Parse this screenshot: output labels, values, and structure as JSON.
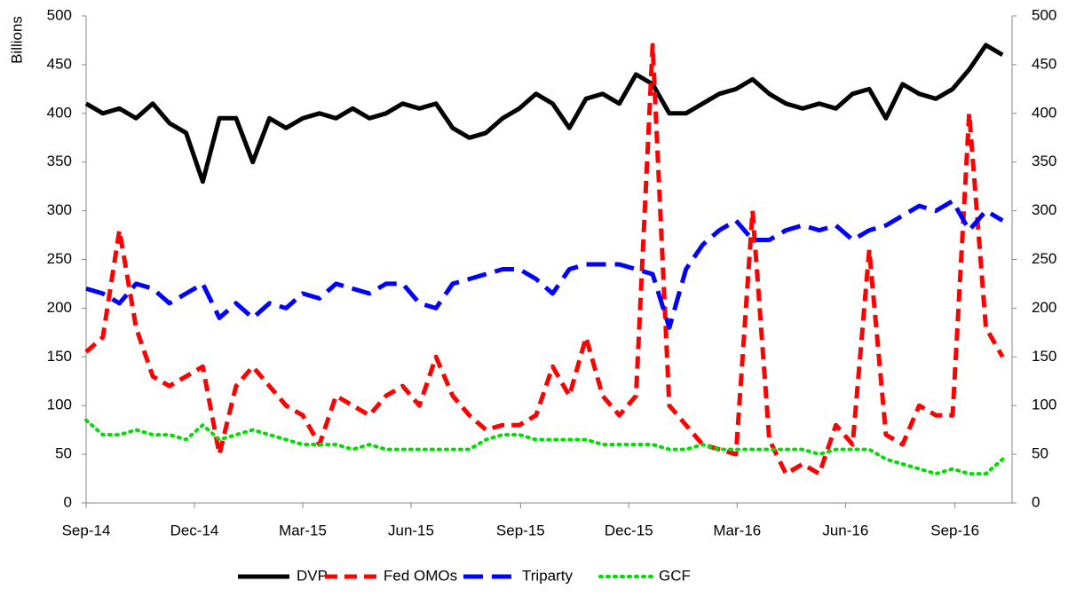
{
  "chart_data": {
    "type": "line",
    "ylabel": "Billions",
    "x": [
      0,
      14,
      28,
      42,
      56,
      70,
      84,
      98,
      112,
      126,
      140,
      154,
      168,
      182,
      196,
      210,
      224,
      238,
      252,
      266,
      280,
      294,
      308,
      322,
      336,
      350,
      364,
      378,
      392,
      406,
      420,
      434,
      448,
      462,
      476,
      490,
      504,
      518,
      532,
      546,
      560,
      574,
      588,
      602,
      616,
      630,
      644,
      658,
      672,
      686,
      700,
      714,
      728,
      742,
      756,
      770
    ],
    "xlim": [
      0,
      778
    ],
    "xticks": [
      {
        "value": 0,
        "label": "Sep-14"
      },
      {
        "value": 91,
        "label": "Dec-14"
      },
      {
        "value": 182,
        "label": "Mar-15"
      },
      {
        "value": 273,
        "label": "Jun-15"
      },
      {
        "value": 365,
        "label": "Sep-15"
      },
      {
        "value": 456,
        "label": "Dec-15"
      },
      {
        "value": 547,
        "label": "Mar-16"
      },
      {
        "value": 638,
        "label": "Jun-16"
      },
      {
        "value": 730,
        "label": "Sep-16"
      }
    ],
    "ylim": [
      0,
      500
    ],
    "yticks": [
      0,
      50,
      100,
      150,
      200,
      250,
      300,
      350,
      400,
      450,
      500
    ],
    "y2lim": [
      0,
      500
    ],
    "y2ticks": [
      0,
      50,
      100,
      150,
      200,
      250,
      300,
      350,
      400,
      450,
      500
    ],
    "legend": "bottom",
    "series": [
      {
        "name": "DVP",
        "color": "#000000",
        "style": "solid",
        "values": [
          410,
          400,
          405,
          395,
          410,
          390,
          380,
          330,
          395,
          395,
          350,
          395,
          385,
          395,
          400,
          395,
          405,
          395,
          400,
          410,
          405,
          410,
          385,
          375,
          380,
          395,
          405,
          420,
          410,
          385,
          415,
          420,
          410,
          440,
          430,
          400,
          400,
          410,
          420,
          425,
          435,
          420,
          410,
          405,
          410,
          405,
          420,
          425,
          395,
          430,
          420,
          415,
          425,
          445,
          470,
          460
        ]
      },
      {
        "name": "Fed OMOs",
        "color": "#ff0000",
        "style": "dashed",
        "values": [
          155,
          170,
          280,
          180,
          130,
          120,
          130,
          140,
          50,
          120,
          140,
          120,
          100,
          90,
          60,
          110,
          100,
          90,
          110,
          120,
          100,
          150,
          110,
          90,
          75,
          80,
          80,
          90,
          140,
          110,
          170,
          110,
          90,
          110,
          470,
          100,
          80,
          60,
          55,
          50,
          300,
          65,
          30,
          40,
          30,
          80,
          60,
          260,
          70,
          60,
          100,
          90,
          90,
          400,
          180,
          150
        ]
      },
      {
        "name": "Triparty",
        "color": "#0000ff",
        "style": "long-dashed",
        "values": [
          220,
          215,
          205,
          225,
          220,
          205,
          215,
          225,
          190,
          205,
          190,
          205,
          200,
          215,
          210,
          225,
          220,
          215,
          225,
          225,
          205,
          200,
          225,
          230,
          235,
          240,
          240,
          230,
          215,
          240,
          245,
          245,
          245,
          240,
          235,
          180,
          240,
          265,
          280,
          290,
          270,
          270,
          280,
          285,
          280,
          285,
          270,
          280,
          285,
          295,
          305,
          300,
          310,
          280,
          300,
          290
        ]
      },
      {
        "name": "GCF",
        "color": "#00dd00",
        "style": "dotted",
        "values": [
          85,
          70,
          70,
          75,
          70,
          70,
          65,
          80,
          65,
          70,
          75,
          70,
          65,
          60,
          60,
          60,
          55,
          60,
          55,
          55,
          55,
          55,
          55,
          55,
          65,
          70,
          70,
          65,
          65,
          65,
          65,
          60,
          60,
          60,
          60,
          55,
          55,
          60,
          55,
          55,
          55,
          55,
          55,
          55,
          50,
          55,
          55,
          55,
          45,
          40,
          35,
          30,
          35,
          30,
          30,
          45
        ]
      }
    ]
  }
}
